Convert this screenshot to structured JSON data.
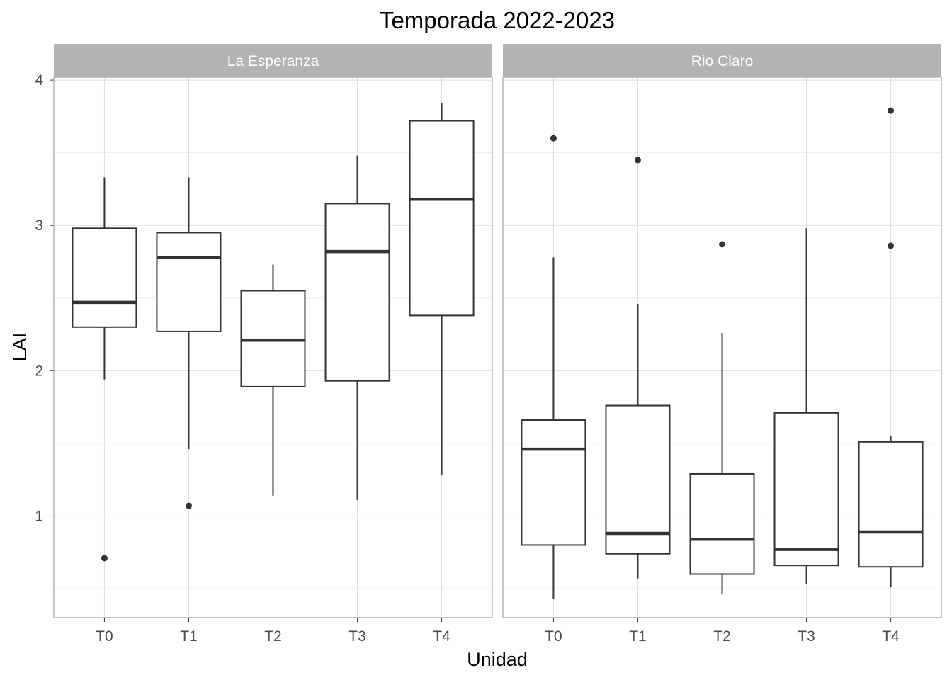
{
  "chart_data": {
    "type": "boxplot",
    "title": "Temporada 2022-2023",
    "xlabel": "Unidad",
    "ylabel": "LAI",
    "ylim": [
      0.3,
      4.02
    ],
    "yticks": [
      1,
      2,
      3,
      4
    ],
    "categories": [
      "T0",
      "T1",
      "T2",
      "T3",
      "T4"
    ],
    "grid": true,
    "colors": {
      "strip": "#b3b3b3",
      "grid_major": "#dedede",
      "grid_minor": "#eeeeee",
      "box": "#333333",
      "panel_border": "#b3b3b3"
    },
    "panels": [
      {
        "name": "La Esperanza",
        "boxes": [
          {
            "category": "T0",
            "whisker_low": 1.94,
            "q1": 2.3,
            "median": 2.47,
            "q3": 2.98,
            "whisker_high": 3.33,
            "outliers": [
              0.71
            ]
          },
          {
            "category": "T1",
            "whisker_low": 1.46,
            "q1": 2.27,
            "median": 2.78,
            "q3": 2.95,
            "whisker_high": 3.33,
            "outliers": [
              1.07
            ]
          },
          {
            "category": "T2",
            "whisker_low": 1.14,
            "q1": 1.89,
            "median": 2.21,
            "q3": 2.55,
            "whisker_high": 2.73,
            "outliers": []
          },
          {
            "category": "T3",
            "whisker_low": 1.11,
            "q1": 1.93,
            "median": 2.82,
            "q3": 3.15,
            "whisker_high": 3.48,
            "outliers": []
          },
          {
            "category": "T4",
            "whisker_low": 1.28,
            "q1": 2.38,
            "median": 3.18,
            "q3": 3.72,
            "whisker_high": 3.84,
            "outliers": []
          }
        ]
      },
      {
        "name": "Rio Claro",
        "boxes": [
          {
            "category": "T0",
            "whisker_low": 0.43,
            "q1": 0.8,
            "median": 1.46,
            "q3": 1.66,
            "whisker_high": 2.78,
            "outliers": [
              3.6
            ]
          },
          {
            "category": "T1",
            "whisker_low": 0.57,
            "q1": 0.74,
            "median": 0.88,
            "q3": 1.76,
            "whisker_high": 2.46,
            "outliers": [
              3.45
            ]
          },
          {
            "category": "T2",
            "whisker_low": 0.46,
            "q1": 0.6,
            "median": 0.84,
            "q3": 1.29,
            "whisker_high": 2.26,
            "outliers": [
              2.87
            ]
          },
          {
            "category": "T3",
            "whisker_low": 0.53,
            "q1": 0.66,
            "median": 0.77,
            "q3": 1.71,
            "whisker_high": 2.98,
            "outliers": []
          },
          {
            "category": "T4",
            "whisker_low": 0.51,
            "q1": 0.65,
            "median": 0.89,
            "q3": 1.51,
            "whisker_high": 1.55,
            "outliers": [
              2.86,
              3.79
            ]
          }
        ]
      }
    ]
  }
}
